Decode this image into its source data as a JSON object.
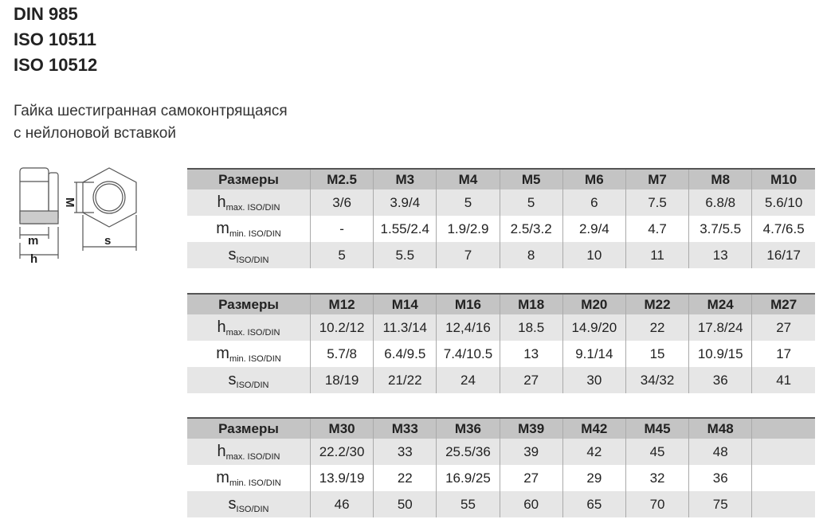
{
  "standards": [
    "DIN 985",
    "ISO 10511",
    "ISO 10512"
  ],
  "description": [
    "Гайка шестигранная самоконтрящаяся",
    "с нейлоновой вставкой"
  ],
  "drawing": {
    "labels": {
      "M": "M",
      "m": "m",
      "h": "h",
      "s": "s"
    }
  },
  "row_labels": {
    "header": "Размеры",
    "h_main": "h",
    "h_sub": "max. ISO/DIN",
    "m_main": "m",
    "m_sub": "min. ISO/DIN",
    "s_main": "s",
    "s_sub": "ISO/DIN"
  },
  "tables": [
    {
      "sizes": [
        "M2.5",
        "M3",
        "M4",
        "M5",
        "M6",
        "M7",
        "M8",
        "M10"
      ],
      "h": [
        "3/6",
        "3.9/4",
        "5",
        "5",
        "6",
        "7.5",
        "6.8/8",
        "5.6/10"
      ],
      "m": [
        "-",
        "1.55/2.4",
        "1.9/2.9",
        "2.5/3.2",
        "2.9/4",
        "4.7",
        "3.7/5.5",
        "4.7/6.5"
      ],
      "s": [
        "5",
        "5.5",
        "7",
        "8",
        "10",
        "11",
        "13",
        "16/17"
      ]
    },
    {
      "sizes": [
        "M12",
        "M14",
        "M16",
        "M18",
        "M20",
        "M22",
        "M24",
        "M27"
      ],
      "h": [
        "10.2/12",
        "11.3/14",
        "12,4/16",
        "18.5",
        "14.9/20",
        "22",
        "17.8/24",
        "27"
      ],
      "m": [
        "5.7/8",
        "6.4/9.5",
        "7.4/10.5",
        "13",
        "9.1/14",
        "15",
        "10.9/15",
        "17"
      ],
      "s": [
        "18/19",
        "21/22",
        "24",
        "27",
        "30",
        "34/32",
        "36",
        "41"
      ]
    },
    {
      "sizes": [
        "M30",
        "M33",
        "M36",
        "M39",
        "M42",
        "M45",
        "M48",
        ""
      ],
      "h": [
        "22.2/30",
        "33",
        "25.5/36",
        "39",
        "42",
        "45",
        "48",
        ""
      ],
      "m": [
        "13.9/19",
        "22",
        "16.9/25",
        "27",
        "29",
        "32",
        "36",
        ""
      ],
      "s": [
        "46",
        "50",
        "55",
        "60",
        "65",
        "70",
        "75",
        ""
      ]
    }
  ]
}
